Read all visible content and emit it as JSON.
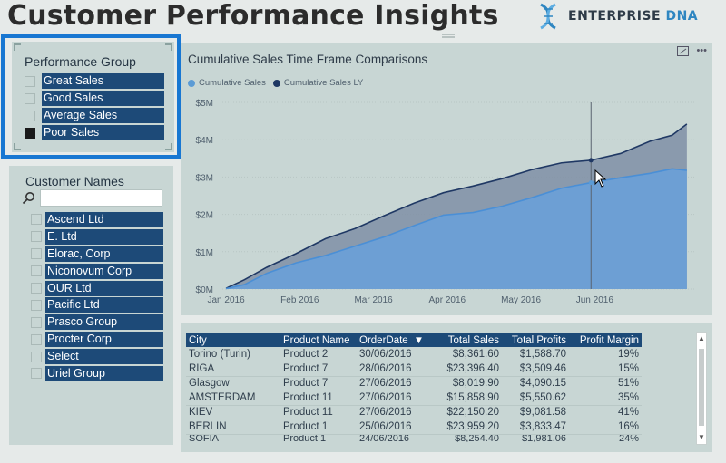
{
  "header": {
    "title": "Customer Performance Insights",
    "brand_prefix": "ENTERPRISE",
    "brand_suffix": "DNA"
  },
  "performance_group": {
    "label": "Performance Group",
    "items": [
      {
        "label": "Great Sales",
        "checked": false
      },
      {
        "label": "Good Sales",
        "checked": false
      },
      {
        "label": "Average Sales",
        "checked": false
      },
      {
        "label": "Poor Sales",
        "checked": true
      }
    ]
  },
  "customer_names": {
    "label": "Customer Names",
    "search_value": "",
    "items": [
      "Ascend Ltd",
      "E. Ltd",
      "Elorac, Corp",
      "Niconovum Corp",
      "OUR Ltd",
      "Pacific Ltd",
      "Prasco Group",
      "Procter Corp",
      "Select",
      "Uriel Group"
    ]
  },
  "chart": {
    "title": "Cumulative Sales Time Frame Comparisons",
    "legend": [
      {
        "name": "Cumulative Sales",
        "color": "#5b9bd5"
      },
      {
        "name": "Cumulative Sales LY",
        "color": "#1f3864"
      }
    ]
  },
  "chart_data": {
    "type": "area",
    "x_tick_labels": [
      "Jan 2016",
      "Feb 2016",
      "Mar 2016",
      "Apr 2016",
      "May 2016",
      "Jun 2016"
    ],
    "y_tick_labels": [
      "$0M",
      "$1M",
      "$2M",
      "$3M",
      "$4M",
      "$5M"
    ],
    "ylim": [
      0,
      5
    ],
    "x_range_months": [
      0,
      6.4
    ],
    "series": [
      {
        "name": "Cumulative Sales LY",
        "color": "#1f3864",
        "x": [
          0.05,
          0.3,
          0.6,
          1.0,
          1.4,
          1.8,
          2.2,
          2.6,
          3.0,
          3.4,
          3.8,
          4.2,
          4.6,
          5.0,
          5.4,
          5.8,
          6.1,
          6.3
        ],
        "y": [
          0.02,
          0.25,
          0.58,
          0.95,
          1.35,
          1.62,
          1.97,
          2.3,
          2.58,
          2.76,
          2.96,
          3.2,
          3.38,
          3.45,
          3.63,
          3.96,
          4.12,
          4.42
        ]
      },
      {
        "name": "Cumulative Sales",
        "color": "#5b9bd5",
        "x": [
          0.05,
          0.3,
          0.6,
          1.0,
          1.4,
          1.8,
          2.2,
          2.6,
          3.0,
          3.4,
          3.8,
          4.2,
          4.6,
          5.0,
          5.4,
          5.8,
          6.1,
          6.3
        ],
        "y": [
          0.01,
          0.12,
          0.42,
          0.7,
          0.9,
          1.15,
          1.4,
          1.7,
          1.98,
          2.05,
          2.22,
          2.45,
          2.7,
          2.85,
          2.98,
          3.1,
          3.22,
          3.18
        ]
      }
    ],
    "marker_x_month": 5.0
  },
  "table": {
    "headers": [
      "City",
      "Product Name",
      "OrderDate",
      "Total Sales",
      "Total Profits",
      "Profit Margin"
    ],
    "sort_indicator": "▼",
    "rows": [
      [
        "Torino (Turin)",
        "Product 2",
        "30/06/2016",
        "$8,361.60",
        "$1,588.70",
        "19%"
      ],
      [
        "RIGA",
        "Product 7",
        "28/06/2016",
        "$23,396.40",
        "$3,509.46",
        "15%"
      ],
      [
        "Glasgow",
        "Product 7",
        "27/06/2016",
        "$8,019.90",
        "$4,090.15",
        "51%"
      ],
      [
        "AMSTERDAM",
        "Product 11",
        "27/06/2016",
        "$15,858.90",
        "$5,550.62",
        "35%"
      ],
      [
        "KIEV",
        "Product 11",
        "27/06/2016",
        "$22,150.20",
        "$9,081.58",
        "41%"
      ],
      [
        "BERLIN",
        "Product 1",
        "25/06/2016",
        "$23,959.20",
        "$3,833.47",
        "16%"
      ],
      [
        "SOFIA",
        "Product 1",
        "24/06/2016",
        "$8,254.40",
        "$1,981.06",
        "24%"
      ]
    ]
  },
  "colors": {
    "accent_blue": "#1877d2",
    "slicer_fill": "#1d4a78",
    "panel_bg": "#c8d6d4"
  }
}
